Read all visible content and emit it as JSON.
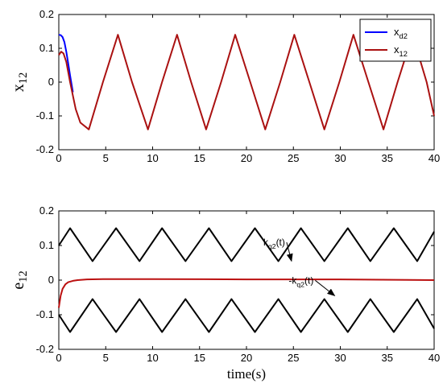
{
  "chart_data": [
    {
      "type": "line",
      "ylabel": "x",
      "ylabel_sub": "12",
      "xlim": [
        0,
        40
      ],
      "ylim": [
        -0.2,
        0.2
      ],
      "xticks": [
        "0",
        "5",
        "10",
        "15",
        "20",
        "25",
        "30",
        "35",
        "40"
      ],
      "yticks": [
        "0.2",
        "0.1",
        "0",
        "-0.1",
        "-0.2"
      ],
      "grid": false,
      "legend": "top-right",
      "series": [
        {
          "name": "x",
          "name_sub": "d2",
          "color": "#0000ff",
          "x": [
            0,
            0.2,
            0.4,
            0.6,
            0.8,
            1.0,
            1.2,
            1.5
          ],
          "y": [
            0.14,
            0.139,
            0.133,
            0.118,
            0.09,
            0.055,
            0.02,
            -0.03
          ]
        },
        {
          "name": "x",
          "name_sub": "12",
          "color": "#aa1111",
          "x": [
            0,
            0.25,
            0.5,
            0.8,
            1.2,
            1.8,
            2.3,
            3.2,
            4.7,
            6.3,
            7.8,
            9.5,
            11.0,
            12.6,
            14.1,
            15.7,
            17.3,
            18.8,
            20.4,
            22.0,
            23.6,
            25.1,
            26.7,
            28.3,
            29.9,
            31.4,
            33.0,
            34.6,
            36.1,
            37.7,
            39.2,
            40.0
          ],
          "y": [
            0.08,
            0.09,
            0.085,
            0.06,
            0.0,
            -0.08,
            -0.12,
            -0.14,
            0.0,
            0.14,
            0.0,
            -0.14,
            0.0,
            0.14,
            0.0,
            -0.14,
            0.0,
            0.14,
            0.0,
            -0.14,
            0.0,
            0.14,
            0.0,
            -0.14,
            0.0,
            0.14,
            0.0,
            -0.14,
            0.0,
            0.14,
            0.0,
            -0.1
          ]
        }
      ]
    },
    {
      "type": "line",
      "ylabel": "e",
      "ylabel_sub": "12",
      "xlabel": "time(s)",
      "xlim": [
        0,
        40
      ],
      "ylim": [
        -0.2,
        0.2
      ],
      "xticks": [
        "0",
        "5",
        "10",
        "15",
        "20",
        "25",
        "30",
        "35",
        "40"
      ],
      "yticks": [
        "0.2",
        "0.1",
        "0",
        "-0.1",
        "-0.2"
      ],
      "grid": false,
      "series": [
        {
          "color": "#000000",
          "x": [
            0,
            1.2,
            3.6,
            6.1,
            8.6,
            11.0,
            13.5,
            16.0,
            18.4,
            20.9,
            23.4,
            25.8,
            28.3,
            30.8,
            33.2,
            35.7,
            38.2,
            40.0
          ],
          "y": [
            0.1,
            0.15,
            0.055,
            0.15,
            0.055,
            0.15,
            0.055,
            0.15,
            0.055,
            0.15,
            0.055,
            0.15,
            0.055,
            0.15,
            0.055,
            0.15,
            0.055,
            0.14
          ]
        },
        {
          "color": "#000000",
          "x": [
            0,
            1.2,
            3.6,
            6.1,
            8.6,
            11.0,
            13.5,
            16.0,
            18.4,
            20.9,
            23.4,
            25.8,
            28.3,
            30.8,
            33.2,
            35.7,
            38.2,
            40.0
          ],
          "y": [
            -0.1,
            -0.15,
            -0.055,
            -0.15,
            -0.055,
            -0.15,
            -0.055,
            -0.15,
            -0.055,
            -0.15,
            -0.055,
            -0.15,
            -0.055,
            -0.15,
            -0.055,
            -0.15,
            -0.055,
            -0.14
          ]
        },
        {
          "color": "#bb1111",
          "x": [
            0,
            0.2,
            0.4,
            0.7,
            1.0,
            1.5,
            2.0,
            3.0,
            5.0,
            10.0,
            20.0,
            30.0,
            40.0
          ],
          "y": [
            -0.08,
            -0.045,
            -0.025,
            -0.012,
            -0.006,
            -0.002,
            0.0,
            0.002,
            0.003,
            0.003,
            0.002,
            0.002,
            0.0
          ]
        }
      ],
      "annotations": [
        {
          "text": "k",
          "sub": "q2",
          "suffix": "(t)",
          "x": 21.8,
          "y": 0.1,
          "arrow_to": [
            24.8,
            0.055
          ]
        },
        {
          "text": "-k",
          "sub": "q2",
          "suffix": "(t)",
          "x": 24.5,
          "y": -0.01,
          "arrow_to": [
            29.4,
            -0.045
          ]
        }
      ]
    }
  ]
}
